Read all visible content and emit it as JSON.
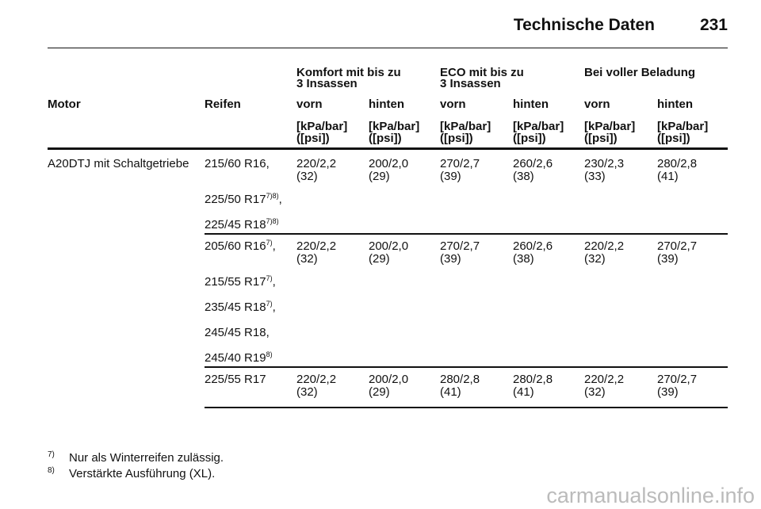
{
  "header": {
    "title": "Technische Daten",
    "page": "231"
  },
  "table": {
    "groups": [
      [
        "Komfort mit bis zu",
        "3 Insassen"
      ],
      [
        "ECO mit bis zu",
        "3 Insassen"
      ],
      [
        "Bei voller Beladung"
      ]
    ],
    "columns": [
      "Motor",
      "Reifen",
      "vorn",
      "hinten",
      "vorn",
      "hinten",
      "vorn",
      "hinten"
    ],
    "units": [
      [
        "[kPa/bar]",
        "([psi])"
      ],
      [
        "[kPa/bar]",
        "([psi])"
      ],
      [
        "[kPa/bar]",
        "([psi])"
      ],
      [
        "[kPa/bar]",
        "([psi])"
      ],
      [
        "[kPa/bar]",
        "([psi])"
      ],
      [
        "[kPa/bar]",
        "([psi])"
      ]
    ],
    "rows": [
      {
        "motor": "A20DTJ mit Schaltgetriebe",
        "tires": [
          {
            "text": "215/60 R16,"
          },
          {
            "text": "225/50 R17",
            "sup": "7)8)",
            "suffix": ","
          },
          {
            "text": "225/45 R18",
            "sup": "7)8)"
          }
        ],
        "values": [
          [
            "220/2,2",
            "(32)"
          ],
          [
            "200/2,0",
            "(29)"
          ],
          [
            "270/2,7",
            "(39)"
          ],
          [
            "260/2,6",
            "(38)"
          ],
          [
            "230/2,3",
            "(33)"
          ],
          [
            "280/2,8",
            "(41)"
          ]
        ]
      },
      {
        "tires": [
          {
            "text": "205/60 R16",
            "sup": "7)",
            "suffix": ","
          },
          {
            "text": "215/55 R17",
            "sup": "7)",
            "suffix": ","
          },
          {
            "text": "235/45 R18",
            "sup": "7)",
            "suffix": ","
          },
          {
            "text": "245/45 R18,"
          },
          {
            "text": "245/40 R19",
            "sup": "8)"
          }
        ],
        "values": [
          [
            "220/2,2",
            "(32)"
          ],
          [
            "200/2,0",
            "(29)"
          ],
          [
            "270/2,7",
            "(39)"
          ],
          [
            "260/2,6",
            "(38)"
          ],
          [
            "220/2,2",
            "(32)"
          ],
          [
            "270/2,7",
            "(39)"
          ]
        ]
      },
      {
        "tires": [
          {
            "text": "225/55 R17"
          }
        ],
        "values": [
          [
            "220/2,2",
            "(32)"
          ],
          [
            "200/2,0",
            "(29)"
          ],
          [
            "280/2,8",
            "(41)"
          ],
          [
            "280/2,8",
            "(41)"
          ],
          [
            "220/2,2",
            "(32)"
          ],
          [
            "270/2,7",
            "(39)"
          ]
        ]
      }
    ]
  },
  "footnotes": [
    {
      "mark": "7)",
      "text": "Nur als Winterreifen zulässig."
    },
    {
      "mark": "8)",
      "text": "Verstärkte Ausführung (XL)."
    }
  ],
  "watermark": "carmanualsonline.info"
}
